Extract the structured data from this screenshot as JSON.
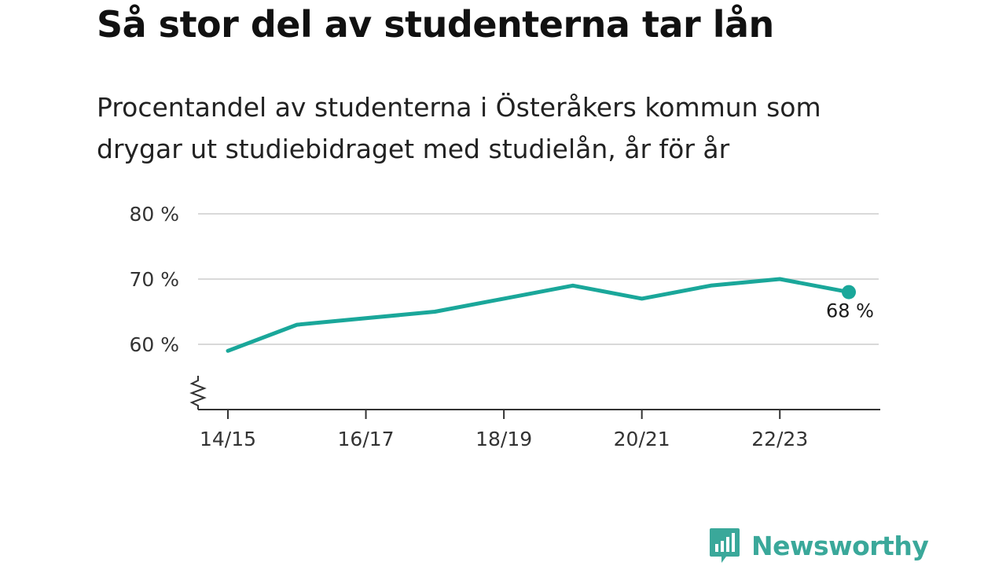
{
  "title": "Så stor del av studenterna tar lån",
  "subtitle": "Procentandel av studenterna i Österåkers kommun som drygar ut studiebidraget med studielån, år för år",
  "brand": {
    "name": "Newsworthy",
    "color": "#3aa89a",
    "mark_icon": "bar-chart-speech-bubble-icon"
  },
  "chart_data": {
    "type": "line",
    "title": "Så stor del av studenterna tar lån",
    "subtitle": "Procentandel av studenterna i Österåkers kommun som drygar ut studiebidraget med studielån, år för år",
    "x": [
      "14/15",
      "15/16",
      "16/17",
      "17/18",
      "18/19",
      "19/20",
      "20/21",
      "21/22",
      "22/23",
      "23/24"
    ],
    "x_tick_labels": [
      "14/15",
      "16/17",
      "18/19",
      "20/21",
      "22/23"
    ],
    "series": [
      {
        "values": [
          59,
          63,
          64,
          65,
          67,
          69,
          67,
          69,
          70,
          68
        ],
        "color": "#1aa79a"
      }
    ],
    "ylim": [
      50,
      80
    ],
    "y_ticks": [
      60,
      70,
      80
    ],
    "y_tick_labels": [
      "60 %",
      "70 %",
      "80 %"
    ],
    "axis_break": true,
    "grid": true,
    "last_value_label": "68 %"
  }
}
